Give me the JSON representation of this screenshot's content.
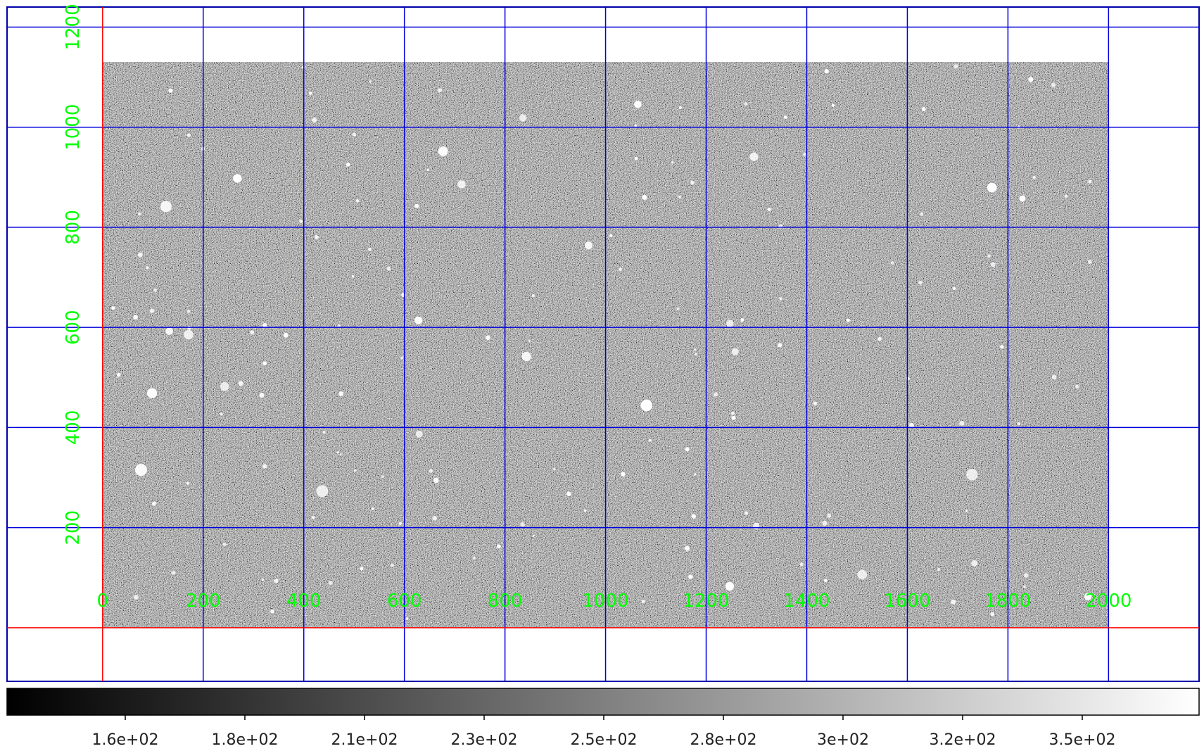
{
  "viewer": {
    "image_kind": "astronomical-grayscale-image",
    "colors": {
      "grid": "#0000dd",
      "axis_lines": "#ff0000",
      "axis_labels": "#00ff00",
      "frame": "#0000aa",
      "background": "#ffffff"
    },
    "x_axis": {
      "ticks": [
        0,
        200,
        400,
        600,
        800,
        1000,
        1200,
        1400,
        1600,
        1800,
        2000
      ],
      "labels": [
        "0",
        "200",
        "400",
        "600",
        "800",
        "1000",
        "1200",
        "1400",
        "1600",
        "1800",
        "2000"
      ]
    },
    "y_axis": {
      "ticks": [
        200,
        400,
        600,
        800,
        1000,
        1200
      ],
      "labels": [
        "200",
        "400",
        "600",
        "800",
        "1000",
        "1200"
      ]
    },
    "image_extent": {
      "x_range": [
        0,
        2000
      ],
      "y_range": [
        0,
        1130
      ]
    },
    "view_extent": {
      "x_range": [
        -190,
        2180
      ],
      "y_range": [
        -107,
        1240
      ]
    },
    "colorbar": {
      "colormap": "gray",
      "tick_labels": [
        "1.6e+02",
        "1.8e+02",
        "2.1e+02",
        "2.3e+02",
        "2.5e+02",
        "2.8e+02",
        "3e+02",
        "3.2e+02",
        "3.5e+02"
      ]
    }
  }
}
